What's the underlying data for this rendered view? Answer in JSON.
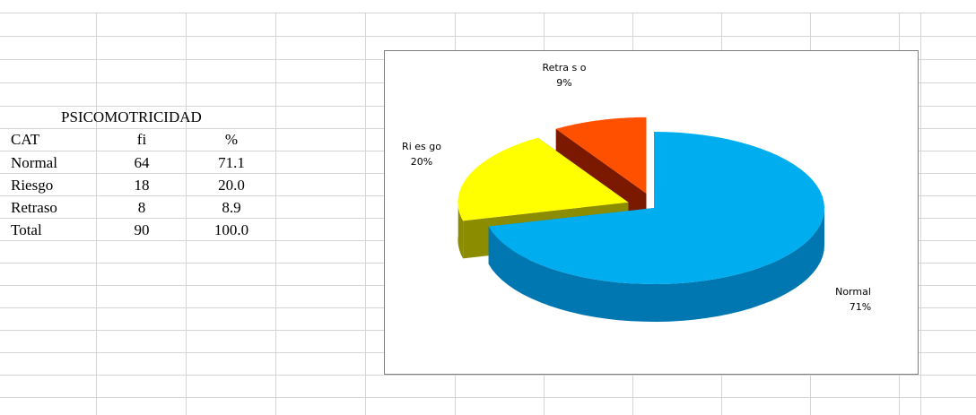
{
  "table": {
    "title": "PSICOMOTRICIDAD",
    "headers": [
      "CAT",
      "fi",
      "%"
    ],
    "rows": [
      [
        "Normal",
        "64",
        "71.1"
      ],
      [
        "Riesgo",
        "18",
        "20.0"
      ],
      [
        "Retraso",
        "8",
        "8.9"
      ],
      [
        "Total",
        "90",
        "100.0"
      ]
    ]
  },
  "chart_data": {
    "type": "pie",
    "style": "3d-exploded",
    "title": "",
    "categories": [
      "Normal",
      "Riesgo",
      "Retraso"
    ],
    "values": [
      71.1,
      20.0,
      8.9
    ],
    "labels": [
      {
        "name": "Normal",
        "pct": "71%"
      },
      {
        "name": "Ri es go",
        "pct": "20%"
      },
      {
        "name": "Retra s o",
        "pct": "9%"
      }
    ],
    "colors": [
      "#00AEEF",
      "#FFFF00",
      "#FF5000"
    ],
    "side_colors": [
      "#0077B0",
      "#8C8C00",
      "#7A1800"
    ]
  },
  "colors": {
    "gridline": "#d4d4d4",
    "chart_border": "#7f7f7f"
  }
}
